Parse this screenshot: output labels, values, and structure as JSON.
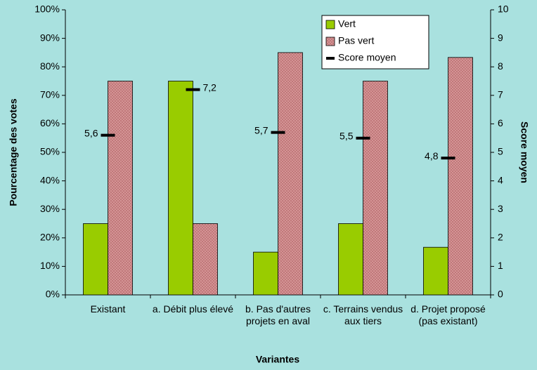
{
  "chart_data": {
    "type": "bar",
    "categories": [
      "Existant",
      "a. Débit plus élevé",
      "b. Pas d'autres projets en aval",
      "c. Terrains vendus aux tiers",
      "d. Projet proposé (pas existant)"
    ],
    "series": [
      {
        "name": "Vert",
        "color": "#99cc00",
        "values": [
          25,
          75,
          15,
          25,
          16.7
        ]
      },
      {
        "name": "Pas vert",
        "color": "#d8999a",
        "values": [
          75,
          25,
          85,
          75,
          83.3
        ]
      },
      {
        "name": "Score moyen",
        "color": "#000000",
        "axis": "y2",
        "values": [
          5.6,
          7.2,
          5.7,
          5.5,
          4.8
        ],
        "value_labels": [
          "5,6",
          "7,2",
          "5,7",
          "5,5",
          "4,8"
        ]
      }
    ],
    "ylabel": "Pourcentage des votes",
    "y2label": "Score moyen",
    "xlabel": "Variantes",
    "ylim": [
      0,
      100
    ],
    "yticks": [
      {
        "value": 0,
        "label": "0%"
      },
      {
        "value": 10,
        "label": "10%"
      },
      {
        "value": 20,
        "label": "20%"
      },
      {
        "value": 30,
        "label": "30%"
      },
      {
        "value": 40,
        "label": "40%"
      },
      {
        "value": 50,
        "label": "50%"
      },
      {
        "value": 60,
        "label": "60%"
      },
      {
        "value": 70,
        "label": "70%"
      },
      {
        "value": 80,
        "label": "80%"
      },
      {
        "value": 90,
        "label": "90%"
      },
      {
        "value": 100,
        "label": "100%"
      }
    ],
    "y2lim": [
      0,
      10
    ],
    "y2ticks": [
      0,
      1,
      2,
      3,
      4,
      5,
      6,
      7,
      8,
      9,
      10
    ],
    "legend": "top-right"
  }
}
